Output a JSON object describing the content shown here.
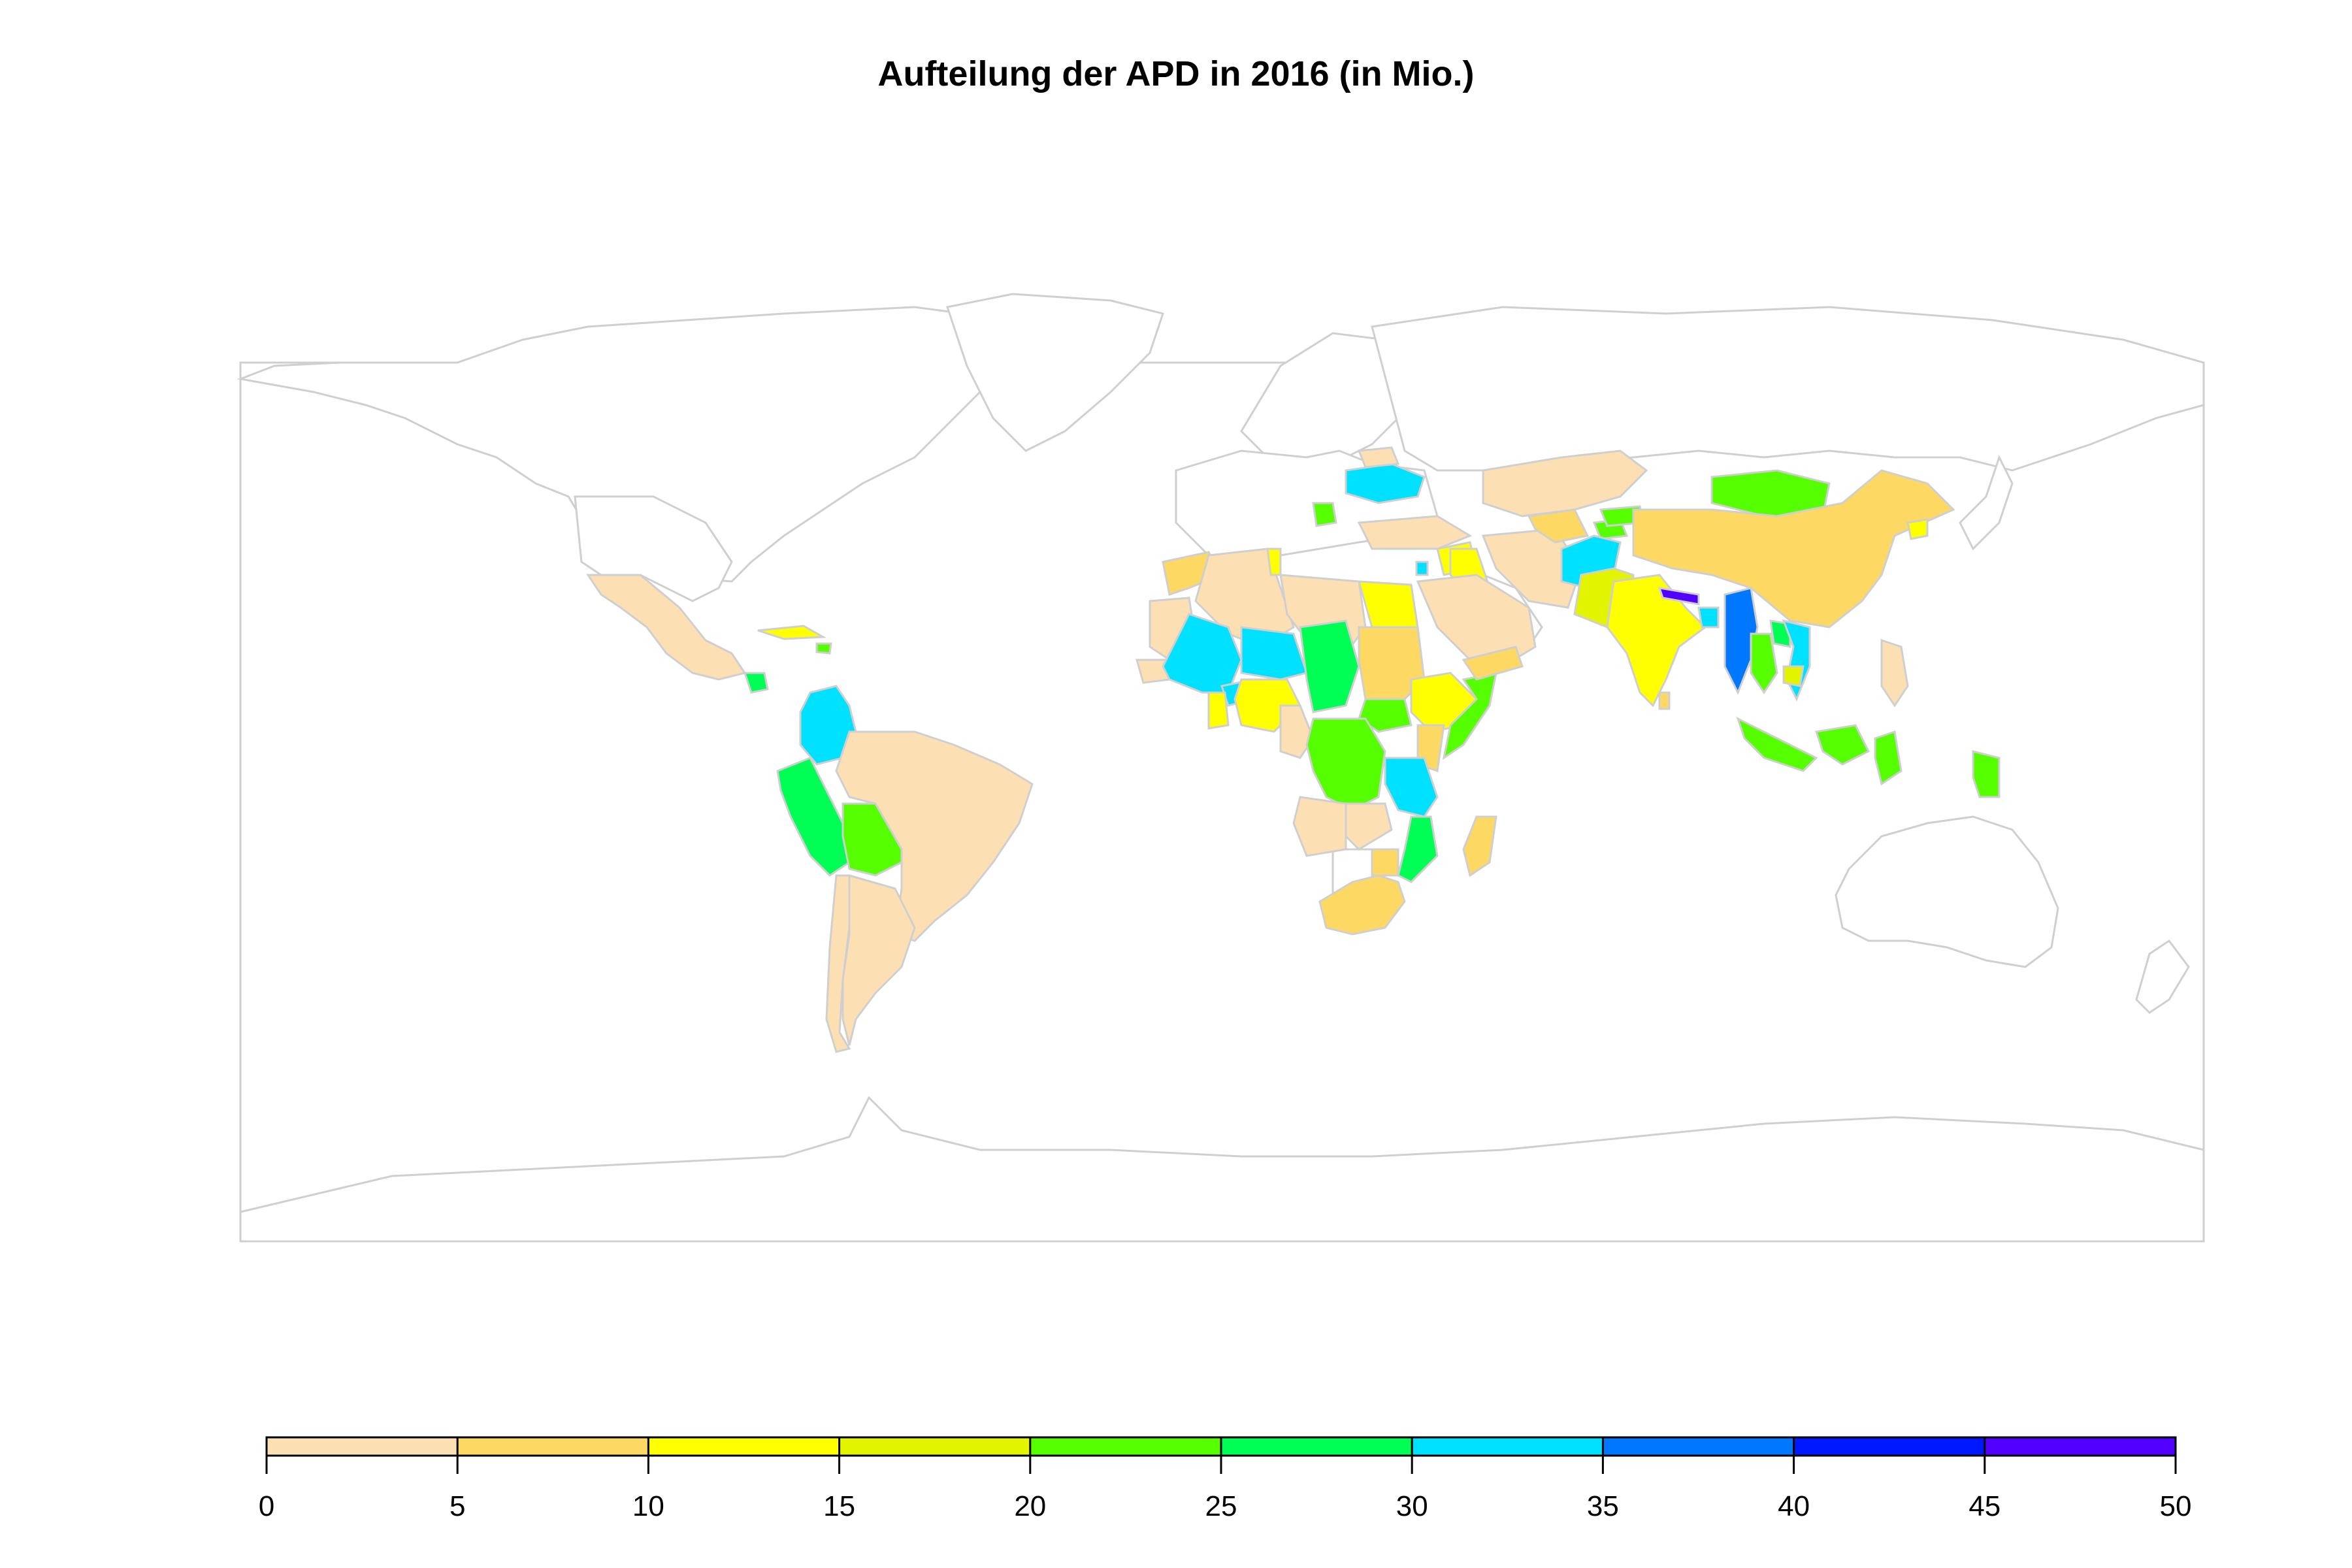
{
  "title": "Aufteilung der APD in 2016 (in Mio.)",
  "legend": {
    "min": 0,
    "max": 50,
    "bins": [
      {
        "from": 0,
        "to": 5,
        "color": "#FDDFB4"
      },
      {
        "from": 5,
        "to": 10,
        "color": "#FDD862"
      },
      {
        "from": 10,
        "to": 15,
        "color": "#FFFF00"
      },
      {
        "from": 15,
        "to": 20,
        "color": "#E3F400"
      },
      {
        "from": 20,
        "to": 25,
        "color": "#55FF00"
      },
      {
        "from": 25,
        "to": 30,
        "color": "#00FF55"
      },
      {
        "from": 30,
        "to": 35,
        "color": "#00E0FF"
      },
      {
        "from": 35,
        "to": 40,
        "color": "#0077FF"
      },
      {
        "from": 40,
        "to": 45,
        "color": "#0018FF"
      },
      {
        "from": 45,
        "to": 50,
        "color": "#5200FF"
      }
    ],
    "ticks": [
      "0",
      "5",
      "10",
      "15",
      "20",
      "25",
      "30",
      "35",
      "40",
      "45",
      "50"
    ]
  },
  "colors": {
    "no_data": "#FFFFFF",
    "border": "#CFCFCF"
  },
  "countries": [
    {
      "name": "Mexico",
      "value": 3
    },
    {
      "name": "Guatemala",
      "value": 26
    },
    {
      "name": "Cuba",
      "value": 12
    },
    {
      "name": "Haiti",
      "value": 23
    },
    {
      "name": "Colombia",
      "value": 32
    },
    {
      "name": "Peru",
      "value": 27
    },
    {
      "name": "Bolivia",
      "value": 24
    },
    {
      "name": "Brazil",
      "value": 3
    },
    {
      "name": "Argentina",
      "value": 3
    },
    {
      "name": "Chile",
      "value": 3
    },
    {
      "name": "Morocco",
      "value": 7
    },
    {
      "name": "Algeria",
      "value": 3
    },
    {
      "name": "Libya",
      "value": 3
    },
    {
      "name": "Tunisia",
      "value": 12
    },
    {
      "name": "Egypt",
      "value": 12
    },
    {
      "name": "Mauritania",
      "value": 3
    },
    {
      "name": "Senegal",
      "value": 3
    },
    {
      "name": "Mali",
      "value": 32
    },
    {
      "name": "Niger",
      "value": 32
    },
    {
      "name": "Burkina Faso",
      "value": 32
    },
    {
      "name": "Chad",
      "value": 26
    },
    {
      "name": "Sudan",
      "value": 7
    },
    {
      "name": "Ethiopia",
      "value": 12
    },
    {
      "name": "Somalia",
      "value": 24
    },
    {
      "name": "South Sudan",
      "value": 23
    },
    {
      "name": "Nigeria",
      "value": 12
    },
    {
      "name": "Ghana",
      "value": 12
    },
    {
      "name": "Cameroon",
      "value": 3
    },
    {
      "name": "DR Congo",
      "value": 22
    },
    {
      "name": "Kenya",
      "value": 7
    },
    {
      "name": "Tanzania",
      "value": 32
    },
    {
      "name": "Angola",
      "value": 3
    },
    {
      "name": "Zambia",
      "value": 3
    },
    {
      "name": "Mozambique",
      "value": 27
    },
    {
      "name": "Zimbabwe",
      "value": 7
    },
    {
      "name": "South Africa",
      "value": 7
    },
    {
      "name": "Madagascar",
      "value": 7
    },
    {
      "name": "Ukraine",
      "value": 32
    },
    {
      "name": "Belarus",
      "value": 3
    },
    {
      "name": "Serbia",
      "value": 23
    },
    {
      "name": "Turkey",
      "value": 3
    },
    {
      "name": "Syria",
      "value": 12
    },
    {
      "name": "Lebanon",
      "value": 32
    },
    {
      "name": "Iraq",
      "value": 12
    },
    {
      "name": "Saudi Arabia",
      "value": 3
    },
    {
      "name": "Yemen",
      "value": 7
    },
    {
      "name": "Iran",
      "value": 3
    },
    {
      "name": "Kazakhstan",
      "value": 3
    },
    {
      "name": "Uzbekistan",
      "value": 7
    },
    {
      "name": "Tajikistan",
      "value": 24
    },
    {
      "name": "Kyrgyzstan",
      "value": 24
    },
    {
      "name": "Afghanistan",
      "value": 32
    },
    {
      "name": "Pakistan",
      "value": 18
    },
    {
      "name": "India",
      "value": 12
    },
    {
      "name": "Nepal",
      "value": 48
    },
    {
      "name": "Bangladesh",
      "value": 33
    },
    {
      "name": "Myanmar",
      "value": 37
    },
    {
      "name": "Thailand",
      "value": 22
    },
    {
      "name": "Laos",
      "value": 27
    },
    {
      "name": "Vietnam",
      "value": 32
    },
    {
      "name": "Cambodia",
      "value": 17
    },
    {
      "name": "Mongolia",
      "value": 23
    },
    {
      "name": "China",
      "value": 7
    },
    {
      "name": "North Korea",
      "value": 12
    },
    {
      "name": "Philippines",
      "value": 3
    },
    {
      "name": "Indonesia",
      "value": 23
    },
    {
      "name": "Papua New Guinea",
      "value": 23
    },
    {
      "name": "Sri Lanka",
      "value": 7
    }
  ]
}
